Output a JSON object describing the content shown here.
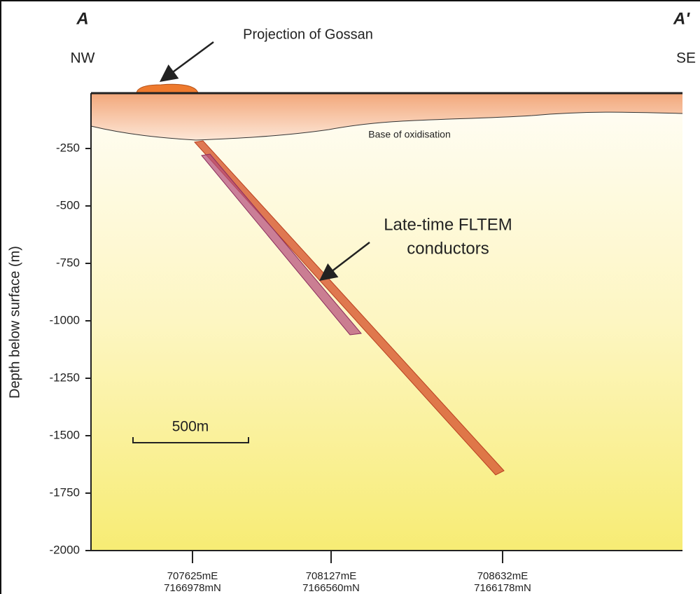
{
  "corner_labels": {
    "left": "A",
    "right": "A'"
  },
  "directions": {
    "left": "NW",
    "right": "SE"
  },
  "annotations": {
    "gossan": "Projection of Gossan",
    "oxidisation": "Base of oxidisation",
    "conductors": [
      "Late-time FLTEM",
      "conductors"
    ]
  },
  "scale_bar": "500m",
  "y_axis": {
    "label": "Depth below surface (m)",
    "ticks": [
      -250,
      -500,
      -750,
      -1000,
      -1250,
      -1500,
      -1750,
      -2000
    ]
  },
  "x_axis": {
    "ticks": [
      {
        "easting": "707625mE",
        "northing": "7166978mN"
      },
      {
        "easting": "708127mE",
        "northing": "7166560mN"
      },
      {
        "easting": "708632mE",
        "northing": "7166178mN"
      }
    ]
  }
}
